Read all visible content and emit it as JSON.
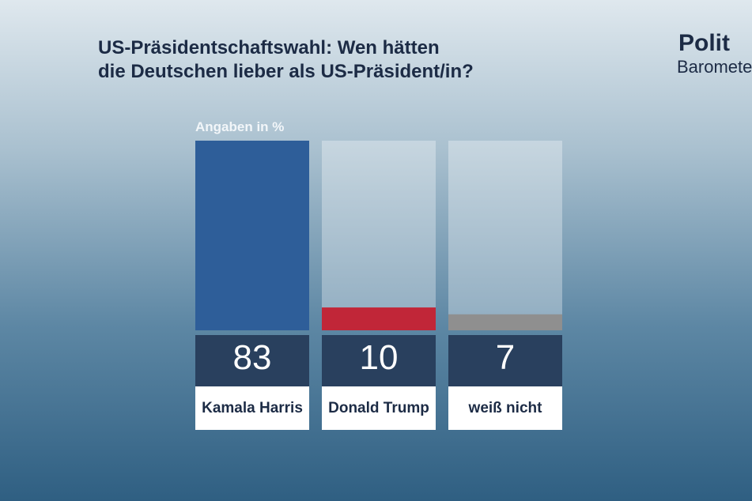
{
  "chart_data": {
    "type": "bar",
    "title": "US-Präsidentschaftswahl: Wen hätten\ndie Deutschen lieber als US-Präsident/in?",
    "subtitle": "Angaben in %",
    "logo": [
      "Polit",
      "Barometer"
    ],
    "categories": [
      "Kamala\nHarris",
      "Donald\nTrump",
      "weiß nicht"
    ],
    "values": [
      83,
      10,
      7
    ],
    "colors": [
      "#2e5e99",
      "#c12638",
      "#8f8f8f"
    ]
  }
}
